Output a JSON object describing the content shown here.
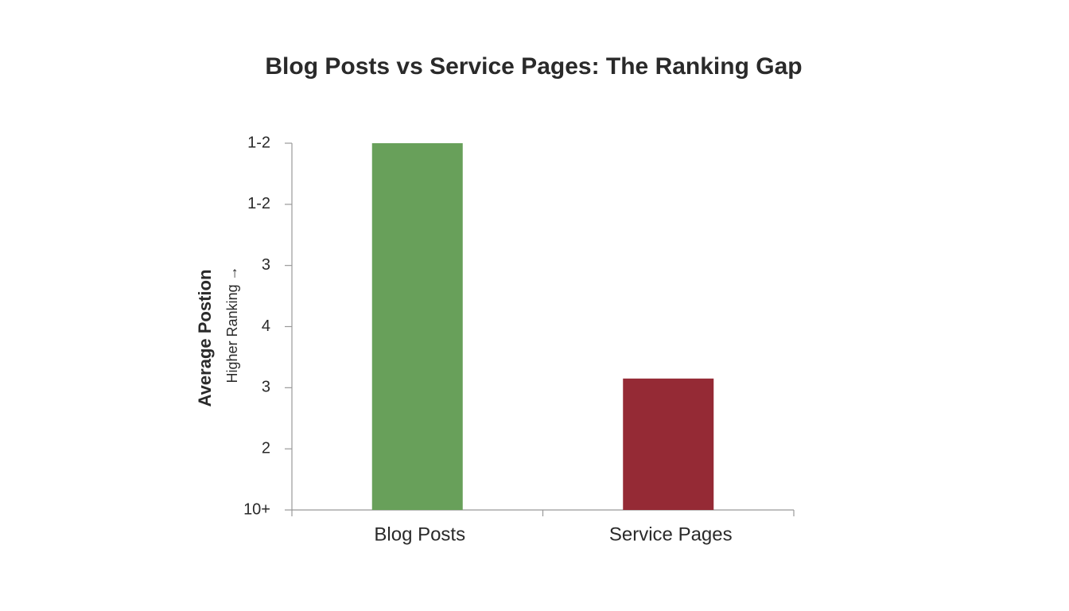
{
  "chart_data": {
    "type": "bar",
    "title": "Blog Posts vs Service Pages: The Ranking Gap",
    "y_label": "Average Postion",
    "y_sublabel": "Higher Ranking →",
    "categories": [
      "Blog Posts",
      "Service Pages"
    ],
    "series": [
      {
        "name": "Average Position",
        "colors": [
          "#68a05a",
          "#952a35"
        ],
        "values": [
          6,
          2.15
        ]
      }
    ],
    "ylim": [
      0,
      6
    ],
    "yticks": [
      {
        "value": 0,
        "label": "10+"
      },
      {
        "value": 1,
        "label": "2"
      },
      {
        "value": 2,
        "label": "3"
      },
      {
        "value": 3,
        "label": "4"
      },
      {
        "value": 4,
        "label": "3"
      },
      {
        "value": 5,
        "label": "1-2"
      },
      {
        "value": 6,
        "label": "1-2"
      }
    ],
    "grid": false
  }
}
